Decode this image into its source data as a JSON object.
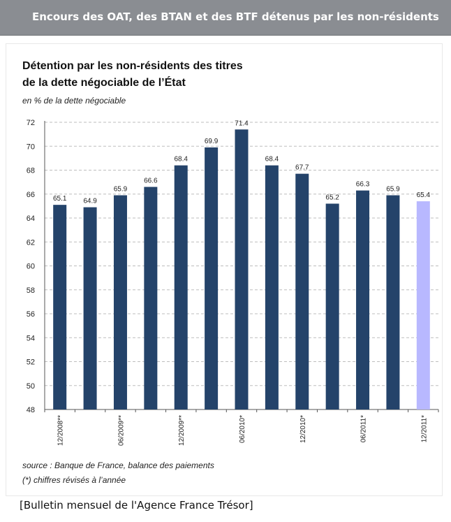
{
  "banner": {
    "title": "Encours des OAT, des BTAN et des BTF détenus par les non-résidents"
  },
  "chart": {
    "title_line1": "Détention par les non-résidents des titres",
    "title_line2": "de la dette négociable de l’État",
    "subtitle": "en % de la dette négociable"
  },
  "footnotes": {
    "source": "source : Banque de France, balance des paiements",
    "note": "(*) chiffres révisés à l’année"
  },
  "caption": "[Bulletin mensuel de l'Agence France Trésor]",
  "colors": {
    "bar_primary": "#24436a",
    "bar_estimate": "#b8b8ff",
    "banner_bg": "#8a8d92"
  },
  "chart_data": {
    "type": "bar",
    "title": "Détention par les non-résidents des titres de la dette négociable de l’État",
    "subtitle": "en % de la dette négociable",
    "categories": [
      "12/2008**",
      "",
      "06/2009**",
      "",
      "12/2009**",
      "",
      "06/2010*",
      "",
      "12/2010*",
      "",
      "06/2011*",
      "",
      "12/2011*"
    ],
    "values": [
      65.1,
      64.9,
      65.9,
      66.6,
      68.4,
      69.9,
      71.4,
      68.4,
      67.7,
      65.2,
      66.3,
      65.9,
      65.4
    ],
    "value_labels": [
      "65.1",
      "64.9",
      "65.9",
      "66.6",
      "68.4",
      "69.9",
      "71.4",
      "68.4",
      "67.7",
      "65.2",
      "66.3",
      "65.9",
      "65.4"
    ],
    "highlighted_index": 12,
    "ylim": [
      48,
      72
    ],
    "yticks": [
      "48",
      "50",
      "52",
      "54",
      "56",
      "58",
      "60",
      "62",
      "64",
      "66",
      "68",
      "70",
      "72"
    ],
    "grid": true,
    "xlabel": "",
    "ylabel": ""
  }
}
